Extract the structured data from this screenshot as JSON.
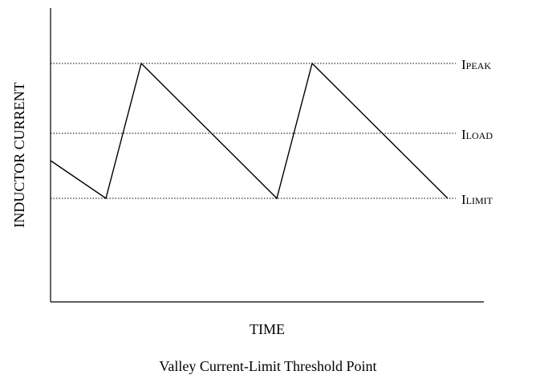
{
  "diagram": {
    "y_axis_label": "INDUCTOR CURRENT",
    "x_axis_label": "TIME",
    "caption": "Valley Current-Limit Threshold Point",
    "levels": [
      {
        "main": "I",
        "sub": "PEAK"
      },
      {
        "main": "I",
        "sub": "LOAD"
      },
      {
        "main": "I",
        "sub": "LIMIT"
      }
    ]
  }
}
